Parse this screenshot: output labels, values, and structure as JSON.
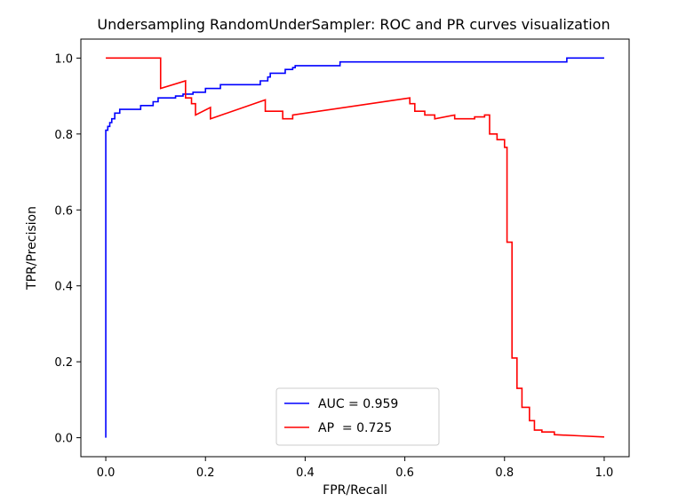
{
  "chart_data": {
    "type": "line",
    "title": "Undersampling RandomUnderSampler: ROC and PR curves visualization",
    "xlabel": "FPR/Recall",
    "ylabel": "TPR/Precision",
    "xlim": [
      -0.05,
      1.05
    ],
    "ylim": [
      -0.05,
      1.05
    ],
    "xticks": [
      "0.0",
      "0.2",
      "0.4",
      "0.6",
      "0.8",
      "1.0"
    ],
    "yticks": [
      "0.0",
      "0.2",
      "0.4",
      "0.6",
      "0.8",
      "1.0"
    ],
    "grid": false,
    "legend_position": "lower center",
    "series": [
      {
        "name": "AUC = 0.959",
        "color": "#0000ff",
        "step": "post",
        "x": [
          0.0,
          0.0,
          0.004,
          0.008,
          0.012,
          0.018,
          0.028,
          0.045,
          0.055,
          0.07,
          0.08,
          0.095,
          0.105,
          0.14,
          0.155,
          0.175,
          0.195,
          0.2,
          0.23,
          0.31,
          0.325,
          0.33,
          0.345,
          0.36,
          0.365,
          0.375,
          0.38,
          0.45,
          0.47,
          0.56,
          0.92,
          0.925,
          1.0
        ],
        "y": [
          0.0,
          0.81,
          0.82,
          0.83,
          0.84,
          0.855,
          0.865,
          0.865,
          0.865,
          0.875,
          0.875,
          0.885,
          0.895,
          0.9,
          0.905,
          0.91,
          0.91,
          0.92,
          0.93,
          0.94,
          0.95,
          0.96,
          0.96,
          0.97,
          0.97,
          0.975,
          0.98,
          0.98,
          0.99,
          0.99,
          0.99,
          1.0,
          1.0
        ]
      },
      {
        "name": "AP  = 0.725",
        "color": "#ff0000",
        "step": "none",
        "x": [
          0.0,
          0.11,
          0.11,
          0.16,
          0.16,
          0.172,
          0.172,
          0.18,
          0.18,
          0.21,
          0.21,
          0.32,
          0.32,
          0.355,
          0.355,
          0.375,
          0.375,
          0.61,
          0.61,
          0.62,
          0.62,
          0.64,
          0.64,
          0.66,
          0.66,
          0.7,
          0.7,
          0.74,
          0.74,
          0.76,
          0.76,
          0.77,
          0.77,
          0.785,
          0.785,
          0.8,
          0.8,
          0.805,
          0.805,
          0.815,
          0.815,
          0.825,
          0.825,
          0.835,
          0.835,
          0.85,
          0.85,
          0.86,
          0.86,
          0.875,
          0.875,
          0.9,
          0.9,
          0.95,
          1.0
        ],
        "y": [
          1.0,
          1.0,
          0.92,
          0.94,
          0.895,
          0.895,
          0.88,
          0.88,
          0.85,
          0.87,
          0.84,
          0.89,
          0.86,
          0.86,
          0.84,
          0.84,
          0.85,
          0.895,
          0.88,
          0.88,
          0.86,
          0.86,
          0.85,
          0.85,
          0.84,
          0.85,
          0.84,
          0.84,
          0.845,
          0.845,
          0.85,
          0.85,
          0.8,
          0.8,
          0.785,
          0.785,
          0.765,
          0.765,
          0.515,
          0.515,
          0.21,
          0.21,
          0.13,
          0.13,
          0.08,
          0.08,
          0.045,
          0.045,
          0.02,
          0.02,
          0.015,
          0.015,
          0.008,
          0.005,
          0.002
        ]
      }
    ]
  }
}
